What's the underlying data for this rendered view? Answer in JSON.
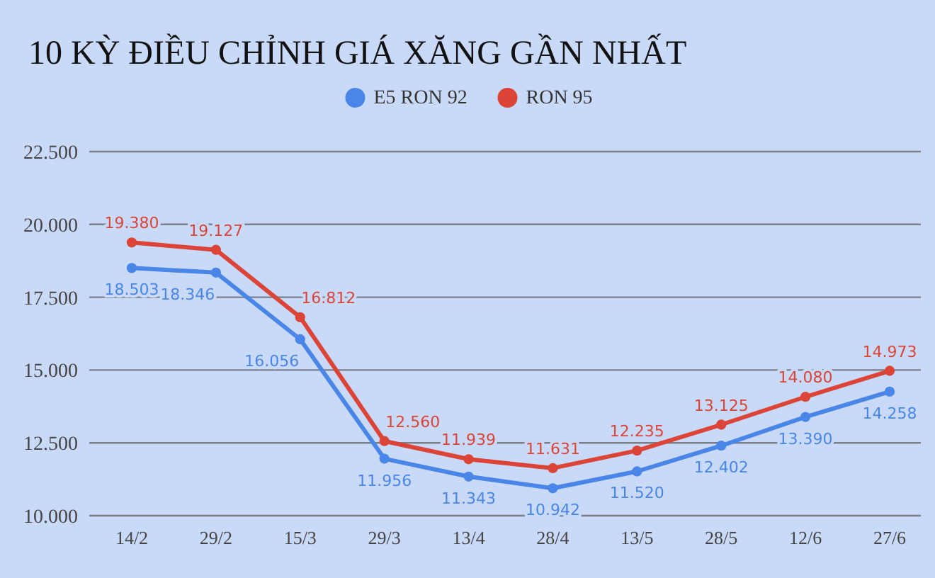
{
  "chart_data": {
    "type": "line",
    "title": "10 KỲ ĐIỀU CHỈNH GIÁ XĂNG GẦN NHẤT",
    "categories": [
      "14/2",
      "29/2",
      "15/3",
      "29/3",
      "13/4",
      "28/4",
      "13/5",
      "28/5",
      "12/6",
      "27/6"
    ],
    "series": [
      {
        "name": "E5 RON 92",
        "color": "#4a86e8",
        "values": [
          18503,
          18346,
          16056,
          11956,
          11343,
          10942,
          11520,
          12402,
          13390,
          14258
        ],
        "value_labels": [
          "18.503",
          "18.346",
          "16.056",
          "11.956",
          "11.343",
          "10.942",
          "11.520",
          "12.402",
          "13.390",
          "14.258"
        ]
      },
      {
        "name": "RON 95",
        "color": "#db4437",
        "values": [
          19380,
          19127,
          16812,
          12560,
          11939,
          11631,
          12235,
          13125,
          14080,
          14973
        ],
        "value_labels": [
          "19.380",
          "19.127",
          "16.812",
          "12.560",
          "11.939",
          "11.631",
          "12.235",
          "13.125",
          "14.080",
          "14.973"
        ]
      }
    ],
    "ylim": [
      10000,
      22500
    ],
    "yticks": [
      {
        "value": 10000,
        "label": "10.000"
      },
      {
        "value": 12500,
        "label": "12.500"
      },
      {
        "value": 15000,
        "label": "15.000"
      },
      {
        "value": 17500,
        "label": "17.500"
      },
      {
        "value": 20000,
        "label": "20.000"
      },
      {
        "value": 22500,
        "label": "22.500"
      }
    ],
    "grid": "y",
    "legend": "top",
    "marker": "circle",
    "line_style": "solid"
  }
}
